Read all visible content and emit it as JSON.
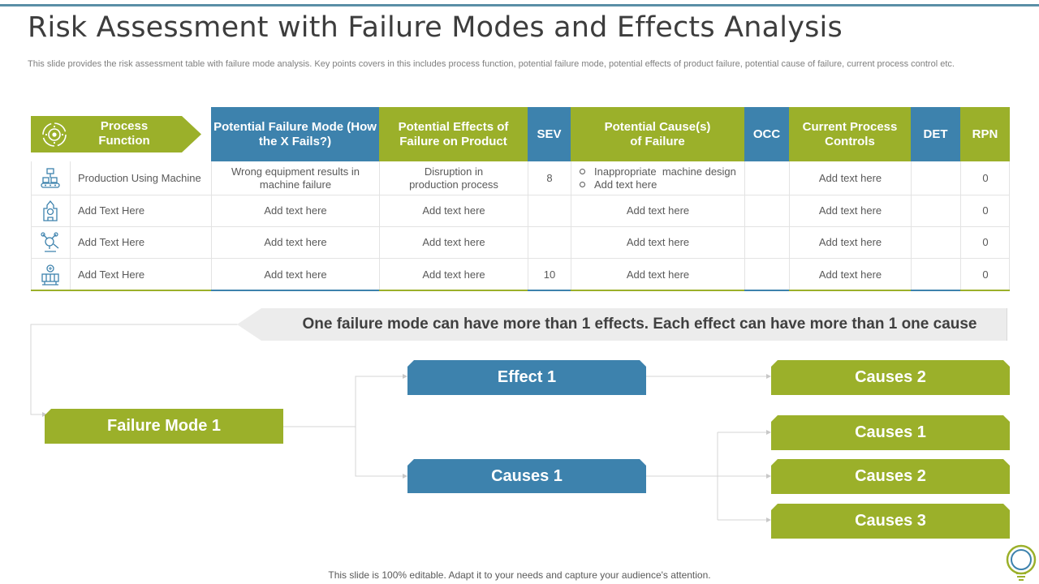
{
  "title": "Risk Assessment with Failure Modes and Effects Analysis",
  "subtitle": "This slide provides the risk assessment table with failure mode analysis. Key points covers in this includes process function, potential failure mode, potential effects of product failure, potential cause of failure, current process control etc.",
  "table": {
    "headers": {
      "process_function": "Process Function",
      "failure_mode": "Potential Failure Mode (How the X Fails?)",
      "effects": "Potential Effects of Failure on Product",
      "sev": "SEV",
      "causes": "Potential Cause(s) of Failure",
      "occ": "OCC",
      "controls": "Current Process Controls",
      "det": "DET",
      "rpn": "RPN"
    },
    "rows": [
      {
        "icon": "conveyor-machine-icon",
        "process": "Production Using Machine",
        "failure_mode": "Wrong equipment results in machine failure",
        "effects": "Disruption in production process",
        "sev": "8",
        "causes": [
          "Inappropriate  machine design",
          "Add text here"
        ],
        "occ": "",
        "controls": "Add text here",
        "det": "",
        "rpn": "0"
      },
      {
        "icon": "factory-icon",
        "process": "Add Text Here",
        "failure_mode": "Add text here",
        "effects": "Add text here",
        "sev": "",
        "causes": [
          "Add text here"
        ],
        "occ": "",
        "controls": "Add text here",
        "det": "",
        "rpn": "0"
      },
      {
        "icon": "robot-arm-icon",
        "process": "Add Text Here",
        "failure_mode": "Add text here",
        "effects": "Add text here",
        "sev": "",
        "causes": [
          "Add text here"
        ],
        "occ": "",
        "controls": "Add text here",
        "det": "",
        "rpn": "0"
      },
      {
        "icon": "assembly-line-icon",
        "process": "Add Text Here",
        "failure_mode": "Add text here",
        "effects": "Add text here",
        "sev": "10",
        "causes": [
          "Add text here"
        ],
        "occ": "",
        "controls": "Add text here",
        "det": "",
        "rpn": "0"
      }
    ]
  },
  "banner": "One failure mode can have more than 1 effects. Each effect can have more than 1 one cause",
  "diagram": {
    "failure_mode": "Failure Mode 1",
    "effect": "Effect 1",
    "causes_mid": "Causes 1",
    "effect_cause": "Causes 2",
    "cause_children": [
      "Causes 1",
      "Causes 2",
      "Causes 3"
    ]
  },
  "footer": "This slide is 100% editable. Adapt it to your needs and capture your audience's attention.",
  "colors": {
    "green": "#9bb02a",
    "blue": "#3d82ad",
    "banner": "#ececec",
    "accent_rule": "#5a8fa6"
  }
}
